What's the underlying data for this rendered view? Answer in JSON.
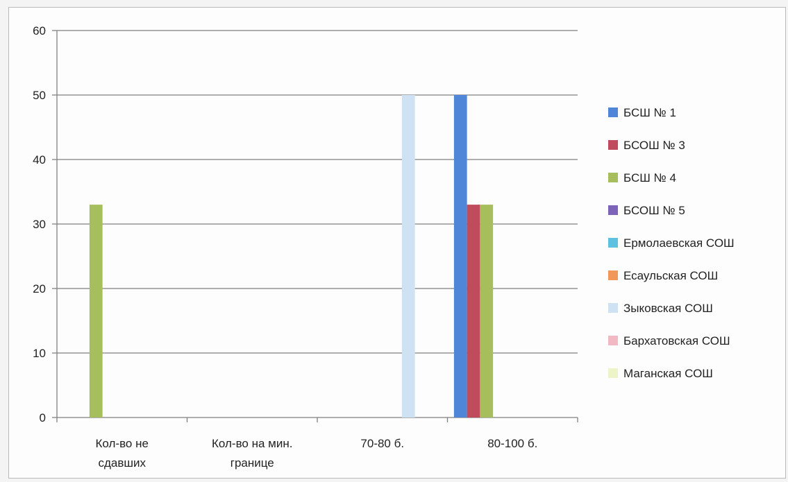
{
  "chart_data": {
    "type": "bar",
    "categories": [
      [
        "Кол-во не",
        "сдавших"
      ],
      [
        "Кол-во на мин.",
        "границе"
      ],
      [
        "70-80 б."
      ],
      [
        "80-100 б."
      ]
    ],
    "series": [
      {
        "name": "БСШ № 1",
        "color": "#4f86d8",
        "values": [
          0,
          0,
          0,
          50
        ]
      },
      {
        "name": "БСОШ № 3",
        "color": "#c04b5c",
        "values": [
          0,
          0,
          0,
          33
        ]
      },
      {
        "name": "БСШ № 4",
        "color": "#a7be5d",
        "values": [
          33,
          0,
          0,
          33
        ]
      },
      {
        "name": "БСОШ № 5",
        "color": "#7d64b8",
        "values": [
          0,
          0,
          0,
          0
        ]
      },
      {
        "name": "Ермолаевская СОШ",
        "color": "#5cc2e0",
        "values": [
          0,
          0,
          0,
          0
        ]
      },
      {
        "name": "Есаульская СОШ",
        "color": "#f2975a",
        "values": [
          0,
          0,
          0,
          0
        ]
      },
      {
        "name": "Зыковская СОШ",
        "color": "#cfe2f3",
        "values": [
          0,
          0,
          50,
          0
        ]
      },
      {
        "name": "Бархатовская СОШ",
        "color": "#f0b9c3",
        "values": [
          0,
          0,
          0,
          0
        ]
      },
      {
        "name": "Маганская СОШ",
        "color": "#ecf4c8",
        "values": [
          0,
          0,
          0,
          0
        ]
      }
    ],
    "ylim": [
      0,
      60
    ],
    "yticks": [
      "0",
      "10",
      "20",
      "30",
      "40",
      "50",
      "60"
    ],
    "grid": true,
    "legend_position": "right"
  }
}
